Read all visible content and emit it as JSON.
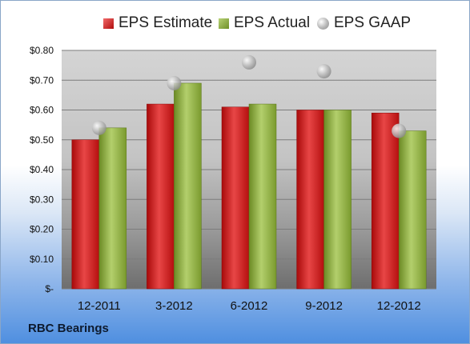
{
  "chart_data": {
    "type": "bar",
    "categories": [
      "12-2011",
      "3-2012",
      "6-2012",
      "9-2012",
      "12-2012"
    ],
    "series": [
      {
        "name": "EPS Estimate",
        "type": "bar",
        "values": [
          0.5,
          0.62,
          0.61,
          0.6,
          0.59
        ],
        "color": "#cc1a1a"
      },
      {
        "name": "EPS Actual",
        "type": "bar",
        "values": [
          0.54,
          0.69,
          0.62,
          0.6,
          0.53
        ],
        "color": "#8aaa3c"
      },
      {
        "name": "EPS GAAP",
        "type": "scatter",
        "values": [
          0.54,
          0.69,
          0.76,
          0.73,
          0.53
        ],
        "color": "#b0b0b0"
      }
    ],
    "ylim": [
      0,
      0.8
    ],
    "yticks": [
      0,
      0.1,
      0.2,
      0.3,
      0.4,
      0.5,
      0.6,
      0.7,
      0.8
    ],
    "ytick_labels": [
      "$-",
      "$0.10",
      "$0.20",
      "$0.30",
      "$0.40",
      "$0.50",
      "$0.60",
      "$0.70",
      "$0.80"
    ],
    "grid": true,
    "legend_position": "top"
  },
  "legend": {
    "estimate": "EPS Estimate",
    "actual": "EPS Actual",
    "gaap": "EPS GAAP"
  },
  "company_name": "RBC Bearings"
}
